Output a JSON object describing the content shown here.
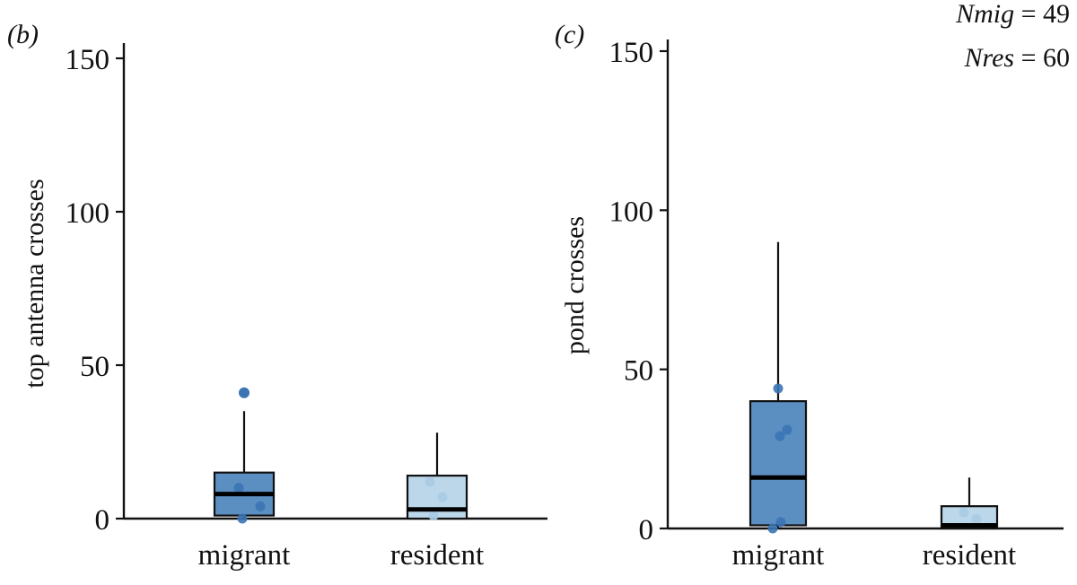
{
  "chart_data": [
    {
      "type": "box",
      "panel_label": "(b)",
      "ylabel": "top antenna crosses",
      "ylim": [
        0,
        150
      ],
      "yticks": [
        0,
        50,
        100,
        150
      ],
      "categories": [
        "migrant",
        "resident"
      ],
      "colors": {
        "migrant": "#5b8fc2",
        "resident": "#bcd7ea",
        "points_migrant": "#3b74b4",
        "points_resident": "#a9cbe4"
      },
      "boxes": [
        {
          "category": "migrant",
          "whisker_low": 0,
          "q1": 1,
          "median": 8,
          "q3": 15,
          "whisker_high": 35,
          "outliers": [
            41
          ],
          "points": [
            10,
            4,
            0
          ]
        },
        {
          "category": "resident",
          "whisker_low": 0,
          "q1": 0,
          "median": 3,
          "q3": 14,
          "whisker_high": 28,
          "outliers": [],
          "points": [
            12,
            7,
            1
          ]
        }
      ]
    },
    {
      "type": "box",
      "panel_label": "(c)",
      "ylabel": "pond crosses",
      "ylim": [
        0,
        150
      ],
      "yticks": [
        0,
        50,
        100,
        150
      ],
      "categories": [
        "migrant",
        "resident"
      ],
      "colors": {
        "migrant": "#5b8fc2",
        "resident": "#bcd7ea",
        "points_migrant": "#3b74b4",
        "points_resident": "#a9cbe4"
      },
      "annotations": [
        {
          "name": "Nmig",
          "value": "49"
        },
        {
          "name": "Nres",
          "value": "60"
        }
      ],
      "boxes": [
        {
          "category": "migrant",
          "whisker_low": 0,
          "q1": 1,
          "median": 16,
          "q3": 40,
          "whisker_high": 90,
          "outliers": [],
          "points": [
            44,
            31,
            29,
            2,
            0
          ]
        },
        {
          "category": "resident",
          "whisker_low": 0,
          "q1": 0,
          "median": 1,
          "q3": 7,
          "whisker_high": 16,
          "outliers": [],
          "points": [
            5,
            3
          ]
        }
      ]
    }
  ]
}
